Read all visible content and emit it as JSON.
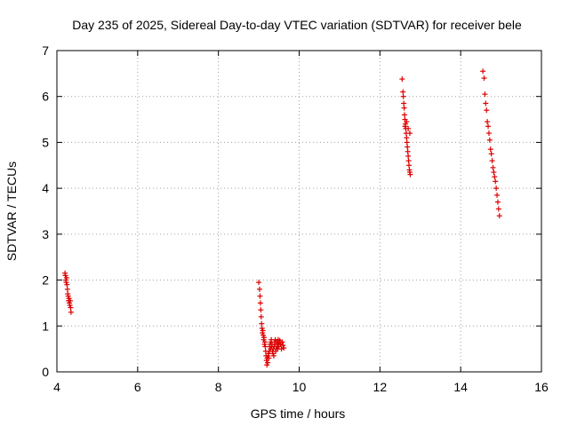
{
  "chart_data": {
    "type": "scatter",
    "title": "Day 235 of 2025, Sidereal Day-to-day VTEC variation (SDTVAR) for receiver bele",
    "xlabel": "GPS time / hours",
    "ylabel": "SDTVAR / TECUs",
    "xlim": [
      4,
      16
    ],
    "ylim": [
      0,
      7
    ],
    "xticks": [
      4,
      6,
      8,
      10,
      12,
      14,
      16
    ],
    "yticks": [
      0,
      1,
      2,
      3,
      4,
      5,
      6,
      7
    ],
    "xtick_labels": [
      "4",
      "6",
      "8",
      "10",
      "12",
      "14",
      "16"
    ],
    "ytick_labels": [
      "0",
      "1",
      "2",
      "3",
      "4",
      "5",
      "6",
      "7"
    ],
    "grid": true,
    "marker": "+",
    "color": "#dd0000",
    "series": [
      {
        "name": "SDTVAR",
        "x": [
          4.2,
          4.21,
          4.22,
          4.23,
          4.24,
          4.25,
          4.26,
          4.27,
          4.28,
          4.29,
          4.3,
          4.31,
          4.32,
          4.33,
          4.34,
          4.35,
          9.0,
          9.02,
          9.03,
          9.04,
          9.05,
          9.06,
          9.07,
          9.08,
          9.09,
          9.1,
          9.11,
          9.12,
          9.13,
          9.14,
          9.15,
          9.16,
          9.17,
          9.18,
          9.19,
          9.2,
          9.21,
          9.22,
          9.23,
          9.24,
          9.25,
          9.26,
          9.27,
          9.28,
          9.29,
          9.3,
          9.31,
          9.32,
          9.33,
          9.34,
          9.35,
          9.36,
          9.37,
          9.38,
          9.39,
          9.4,
          9.41,
          9.42,
          9.43,
          9.44,
          9.45,
          9.46,
          9.47,
          9.48,
          9.49,
          9.5,
          9.52,
          9.54,
          9.56,
          9.58,
          9.6,
          9.62,
          12.55,
          12.57,
          12.58,
          12.59,
          12.6,
          12.61,
          12.62,
          12.63,
          12.64,
          12.65,
          12.66,
          12.67,
          12.68,
          12.69,
          12.7,
          12.71,
          12.72,
          12.73,
          12.74,
          12.75,
          12.62,
          12.66,
          12.7,
          12.74,
          14.55,
          14.58,
          14.6,
          14.62,
          14.64,
          14.66,
          14.68,
          14.7,
          14.72,
          14.74,
          14.76,
          14.78,
          14.8,
          14.82,
          14.84,
          14.86,
          14.88,
          14.9,
          14.92,
          14.94,
          14.96
        ],
        "y": [
          2.15,
          2.1,
          2.0,
          1.95,
          2.05,
          1.9,
          1.8,
          1.7,
          1.65,
          1.55,
          1.6,
          1.5,
          1.45,
          1.55,
          1.4,
          1.3,
          1.95,
          1.8,
          1.65,
          1.5,
          1.35,
          1.2,
          1.05,
          0.95,
          0.85,
          0.9,
          0.8,
          0.7,
          0.75,
          0.6,
          0.65,
          0.55,
          0.45,
          0.35,
          0.25,
          0.15,
          0.3,
          0.2,
          0.35,
          0.4,
          0.3,
          0.45,
          0.55,
          0.6,
          0.5,
          0.65,
          0.7,
          0.55,
          0.6,
          0.45,
          0.4,
          0.5,
          0.35,
          0.55,
          0.65,
          0.6,
          0.7,
          0.45,
          0.5,
          0.65,
          0.55,
          0.6,
          0.5,
          0.7,
          0.62,
          0.55,
          0.68,
          0.6,
          0.5,
          0.65,
          0.58,
          0.52,
          6.38,
          6.1,
          6.0,
          5.85,
          5.75,
          5.6,
          5.5,
          5.4,
          5.3,
          5.2,
          5.1,
          5.0,
          4.9,
          4.8,
          4.7,
          4.6,
          4.5,
          4.4,
          4.35,
          4.3,
          5.35,
          5.45,
          5.3,
          5.2,
          6.55,
          6.4,
          6.05,
          5.85,
          5.7,
          5.45,
          5.35,
          5.2,
          5.05,
          4.85,
          4.75,
          4.6,
          4.45,
          4.35,
          4.25,
          4.15,
          4.0,
          3.85,
          3.7,
          3.55,
          3.4
        ]
      }
    ]
  }
}
